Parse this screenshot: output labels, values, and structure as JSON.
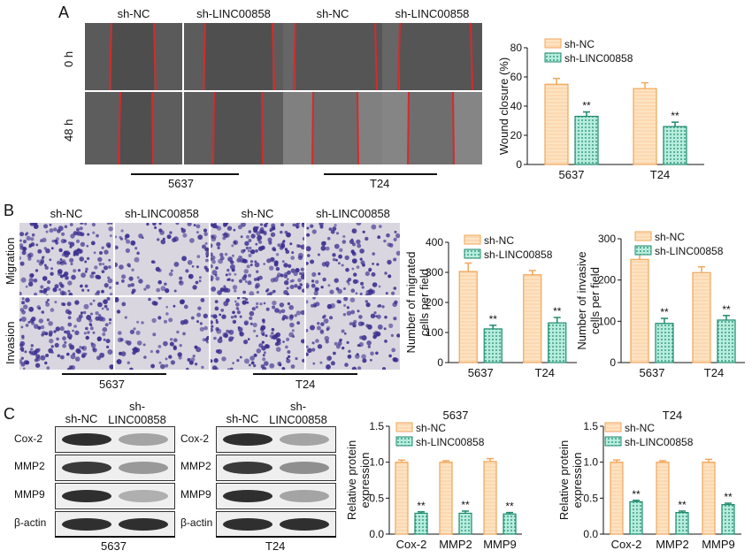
{
  "panels": {
    "A": {
      "letter": "A",
      "col_labels": [
        "sh-NC",
        "sh-LINC00858",
        "sh-NC",
        "sh-LINC00858"
      ],
      "row_labels": [
        "0 h",
        "48 h"
      ],
      "group_labels": [
        "5637",
        "T24"
      ]
    },
    "B": {
      "letter": "B",
      "col_labels": [
        "sh-NC",
        "sh-LINC00858",
        "sh-NC",
        "sh-LINC00858"
      ],
      "row_labels": [
        "Migration",
        "Invasion"
      ],
      "group_labels": [
        "5637",
        "T24"
      ]
    },
    "C": {
      "letter": "C",
      "blot_left": {
        "col_labels": [
          "sh-NC",
          "sh-\nLINC00858"
        ],
        "rows": [
          "Cox-2",
          "MMP2",
          "MMP9",
          "β-actin"
        ],
        "group_label": "5637"
      },
      "blot_right": {
        "col_labels": [
          "sh-NC",
          "sh-\nLINC00858"
        ],
        "rows": [
          "Cox-2",
          "MMP2",
          "MMP9",
          "β-actin"
        ],
        "group_label": "T24"
      }
    }
  },
  "colors": {
    "nc_fill": "#fde3c2",
    "nc_edge": "#f1a65a",
    "kd_fill": "#b6eddc",
    "kd_edge": "#1d8a6e",
    "wound_line": "#d62a2a",
    "stain": "#3b2f8f"
  },
  "chart_data": [
    {
      "id": "wound",
      "type": "bar",
      "categories": [
        "5637",
        "T24"
      ],
      "series": [
        {
          "name": "sh-NC",
          "values": [
            55,
            52
          ],
          "errors": [
            4,
            4
          ],
          "sig": [
            "",
            ""
          ]
        },
        {
          "name": "sh-LINC00858",
          "values": [
            33,
            26
          ],
          "errors": [
            3,
            3
          ],
          "sig": [
            "**",
            "**"
          ]
        }
      ],
      "ylabel": "Wound closure (%)",
      "ylim": [
        0,
        80
      ],
      "yticks": [
        0,
        20,
        40,
        60,
        80
      ],
      "legend": "top-right"
    },
    {
      "id": "migration",
      "type": "bar",
      "categories": [
        "5637",
        "T24"
      ],
      "series": [
        {
          "name": "sh-NC",
          "values": [
            303,
            292
          ],
          "errors": [
            28,
            14
          ],
          "sig": [
            "",
            ""
          ]
        },
        {
          "name": "sh-LINC00858",
          "values": [
            112,
            132
          ],
          "errors": [
            12,
            18
          ],
          "sig": [
            "**",
            "**"
          ]
        }
      ],
      "ylabel": "Number of migrated\ncells per field",
      "ylim": [
        0,
        400
      ],
      "yticks": [
        0,
        100,
        200,
        300,
        400
      ],
      "legend": "top-right"
    },
    {
      "id": "invasion",
      "type": "bar",
      "categories": [
        "5637",
        "T24"
      ],
      "series": [
        {
          "name": "sh-NC",
          "values": [
            250,
            218
          ],
          "errors": [
            15,
            14
          ],
          "sig": [
            "",
            ""
          ]
        },
        {
          "name": "sh-LINC00858",
          "values": [
            95,
            103
          ],
          "errors": [
            12,
            11
          ],
          "sig": [
            "**",
            "**"
          ]
        }
      ],
      "ylabel": "Number of invasive\ncells per field",
      "ylim": [
        0,
        300
      ],
      "yticks": [
        0,
        100,
        200,
        300
      ],
      "legend": "top-right"
    },
    {
      "id": "protein5637",
      "type": "bar",
      "title": "5637",
      "categories": [
        "Cox-2",
        "MMP2",
        "MMP9"
      ],
      "series": [
        {
          "name": "sh-NC",
          "values": [
            1.0,
            1.0,
            1.01
          ],
          "errors": [
            0.03,
            0.02,
            0.04
          ],
          "sig": [
            "",
            "",
            ""
          ]
        },
        {
          "name": "sh-LINC00858",
          "values": [
            0.29,
            0.29,
            0.28
          ],
          "errors": [
            0.02,
            0.03,
            0.02
          ],
          "sig": [
            "**",
            "**",
            "**"
          ]
        }
      ],
      "ylabel": "Relative protein\nexpression",
      "ylim": [
        0,
        1.5
      ],
      "yticks": [
        0.0,
        0.5,
        1.0,
        1.5
      ],
      "legend": "top-right"
    },
    {
      "id": "proteinT24",
      "type": "bar",
      "title": "T24",
      "categories": [
        "Cox-2",
        "MMP2",
        "MMP9"
      ],
      "series": [
        {
          "name": "sh-NC",
          "values": [
            1.0,
            1.0,
            1.0
          ],
          "errors": [
            0.03,
            0.02,
            0.04
          ],
          "sig": [
            "",
            "",
            ""
          ]
        },
        {
          "name": "sh-LINC00858",
          "values": [
            0.45,
            0.3,
            0.41
          ],
          "errors": [
            0.02,
            0.02,
            0.02
          ],
          "sig": [
            "**",
            "**",
            "**"
          ]
        }
      ],
      "ylabel": "Relative protein\nexpression",
      "ylim": [
        0,
        1.5
      ],
      "yticks": [
        0.0,
        0.5,
        1.0,
        1.5
      ],
      "legend": "top-right"
    }
  ]
}
